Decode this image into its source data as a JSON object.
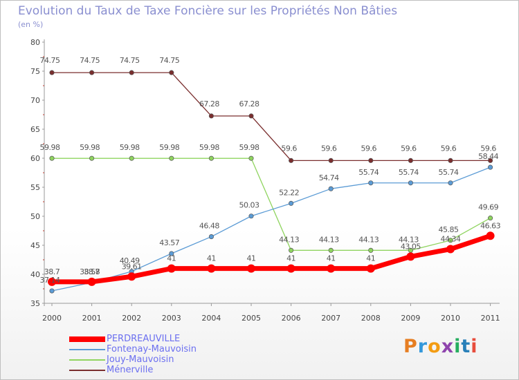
{
  "title": "Evolution du Taux de Taxe Foncière sur les Propriétés Non Bâties",
  "subtitle": "(en %)",
  "logo": "Proxiti",
  "chart_data": {
    "type": "line",
    "title": "Evolution du Taux de Taxe Foncière sur les Propriétés Non Bâties",
    "ylabel": "(en %)",
    "xlabel": "",
    "ylim": [
      35,
      80
    ],
    "yticks": [
      35,
      40,
      45,
      50,
      55,
      60,
      65,
      70,
      75,
      80
    ],
    "categories": [
      "2000",
      "2001",
      "2002",
      "2003",
      "2004",
      "2005",
      "2006",
      "2007",
      "2008",
      "2009",
      "2010",
      "2011"
    ],
    "grid": false,
    "legend_position": "bottom-left",
    "series": [
      {
        "name": "PERDREAUVILLE",
        "color": "#ff0000",
        "values": [
          38.7,
          38.7,
          39.61,
          41,
          41,
          41,
          41,
          41,
          41,
          43.05,
          44.34,
          46.63
        ],
        "labels": [
          "38.7",
          "38.7",
          "39.61",
          "41",
          "41",
          "41",
          "41",
          "41",
          "41",
          "43.05",
          "44.34",
          "46.63"
        ]
      },
      {
        "name": "Fontenay-Mauvoisin",
        "color": "#5b9bd5",
        "values": [
          37.14,
          38.58,
          40.49,
          43.57,
          46.48,
          50.03,
          52.22,
          54.74,
          55.74,
          55.74,
          55.74,
          58.44
        ],
        "labels": [
          "37.14",
          "38.58",
          "40.49",
          "43.57",
          "46.48",
          "50.03",
          "52.22",
          "54.74",
          "55.74",
          "55.74",
          "55.74",
          "58.44"
        ]
      },
      {
        "name": "Jouy-Mauvoisin",
        "color": "#8fd45f",
        "values": [
          59.98,
          59.98,
          59.98,
          59.98,
          59.98,
          59.98,
          44.13,
          44.13,
          44.13,
          44.13,
          45.85,
          49.69
        ],
        "labels": [
          "59.98",
          "59.98",
          "59.98",
          "59.98",
          "59.98",
          "59.98",
          "44.13",
          "44.13",
          "44.13",
          "44.13",
          "45.85",
          "49.69"
        ]
      },
      {
        "name": "Ménerville",
        "color": "#7a2e2e",
        "values": [
          74.75,
          74.75,
          74.75,
          74.75,
          67.28,
          67.28,
          59.6,
          59.6,
          59.6,
          59.6,
          59.6,
          59.6
        ],
        "labels": [
          "74.75",
          "74.75",
          "74.75",
          "74.75",
          "67.28",
          "67.28",
          "59.6",
          "59.6",
          "59.6",
          "59.6",
          "59.6",
          "59.6"
        ]
      }
    ]
  }
}
